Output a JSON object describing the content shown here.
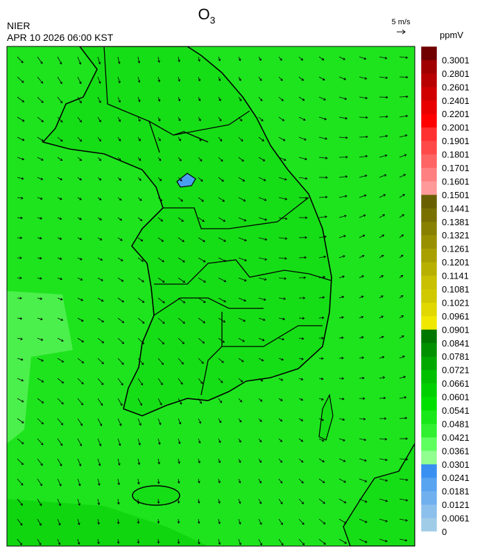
{
  "header": {
    "title": "O",
    "title_subscript": "3",
    "agency": "NIER",
    "timestamp": "APR 10 2026 06:00 KST"
  },
  "wind_reference": {
    "label": "5 m/s"
  },
  "colorbar": {
    "unit": "ppmV",
    "levels": [
      {
        "label": "0",
        "color": "#a0cce8"
      },
      {
        "label": "0.0061",
        "color": "#8cc0ec"
      },
      {
        "label": "0.0121",
        "color": "#70b0ee"
      },
      {
        "label": "0.0181",
        "color": "#58a4f0"
      },
      {
        "label": "0.0241",
        "color": "#3a90f0"
      },
      {
        "label": "0.0301",
        "color": "#90ff90"
      },
      {
        "label": "0.0361",
        "color": "#60ff60"
      },
      {
        "label": "0.0421",
        "color": "#30f030"
      },
      {
        "label": "0.0481",
        "color": "#18e818"
      },
      {
        "label": "0.0541",
        "color": "#00e000"
      },
      {
        "label": "0.0601",
        "color": "#00d000"
      },
      {
        "label": "0.0661",
        "color": "#00c000"
      },
      {
        "label": "0.0721",
        "color": "#00a800"
      },
      {
        "label": "0.0781",
        "color": "#009000"
      },
      {
        "label": "0.0841",
        "color": "#007800"
      },
      {
        "label": "0.0901",
        "color": "#f0e800"
      },
      {
        "label": "0.0961",
        "color": "#e0d800"
      },
      {
        "label": "0.1021",
        "color": "#d0c800"
      },
      {
        "label": "0.1081",
        "color": "#c8c000"
      },
      {
        "label": "0.1141",
        "color": "#b8b000"
      },
      {
        "label": "0.1201",
        "color": "#a8a000"
      },
      {
        "label": "0.1261",
        "color": "#989000"
      },
      {
        "label": "0.1321",
        "color": "#888000"
      },
      {
        "label": "0.1381",
        "color": "#787000"
      },
      {
        "label": "0.1441",
        "color": "#686000"
      },
      {
        "label": "0.1501",
        "color": "#ff9a9a"
      },
      {
        "label": "0.1601",
        "color": "#ff8080"
      },
      {
        "label": "0.1701",
        "color": "#ff6464"
      },
      {
        "label": "0.1801",
        "color": "#ff4848"
      },
      {
        "label": "0.1901",
        "color": "#ff3030"
      },
      {
        "label": "0.2001",
        "color": "#ff0000"
      },
      {
        "label": "0.2201",
        "color": "#e80000"
      },
      {
        "label": "0.2401",
        "color": "#d00000"
      },
      {
        "label": "0.2601",
        "color": "#b80000"
      },
      {
        "label": "0.2801",
        "color": "#a00000"
      },
      {
        "label": "0.3001",
        "color": "#700000"
      }
    ]
  }
}
